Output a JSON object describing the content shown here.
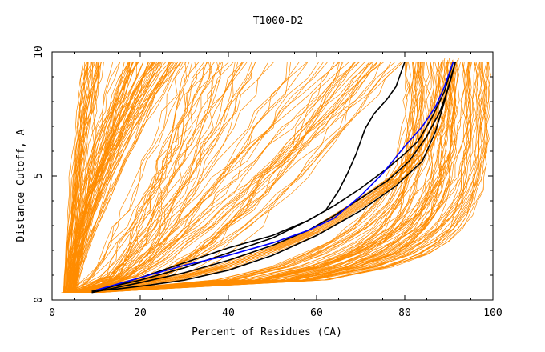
{
  "chart_data": {
    "type": "line",
    "title": "T1000-D2",
    "xlabel": "Percent of Residues (CA)",
    "ylabel": "Distance Cutoff, A",
    "xlim": [
      0,
      100
    ],
    "ylim": [
      0,
      10
    ],
    "x_ticks": [
      0,
      20,
      40,
      60,
      80,
      100
    ],
    "y_ticks": [
      0,
      5,
      10
    ],
    "grid": false,
    "legend": "none",
    "colors": {
      "background_models": "#ff8c00",
      "highlight_black": "#000000",
      "highlight_blue": "#0000ff"
    },
    "highlight_series": [
      {
        "color": "#000000",
        "points": [
          [
            9,
            0.35
          ],
          [
            15,
            0.45
          ],
          [
            22,
            0.6
          ],
          [
            30,
            0.8
          ],
          [
            40,
            1.2
          ],
          [
            50,
            1.8
          ],
          [
            60,
            2.6
          ],
          [
            70,
            3.6
          ],
          [
            78,
            4.6
          ],
          [
            84,
            5.6
          ],
          [
            87,
            6.8
          ],
          [
            89,
            8.0
          ],
          [
            90.5,
            9.0
          ],
          [
            91.5,
            9.6
          ]
        ]
      },
      {
        "color": "#000000",
        "points": [
          [
            10,
            0.4
          ],
          [
            20,
            0.8
          ],
          [
            30,
            1.3
          ],
          [
            40,
            1.9
          ],
          [
            50,
            2.5
          ],
          [
            58,
            3.2
          ],
          [
            62,
            3.6
          ],
          [
            65,
            4.4
          ],
          [
            67,
            5.1
          ],
          [
            69,
            5.9
          ],
          [
            71,
            6.9
          ],
          [
            73,
            7.5
          ],
          [
            76,
            8.1
          ],
          [
            78,
            8.6
          ],
          [
            80,
            9.6
          ]
        ]
      },
      {
        "color": "#000000",
        "points": [
          [
            9,
            0.3
          ],
          [
            20,
            0.7
          ],
          [
            30,
            1.1
          ],
          [
            40,
            1.6
          ],
          [
            50,
            2.2
          ],
          [
            58,
            2.8
          ],
          [
            64,
            3.4
          ],
          [
            70,
            4.1
          ],
          [
            76,
            4.8
          ],
          [
            81,
            5.6
          ],
          [
            85,
            6.6
          ],
          [
            88,
            7.6
          ],
          [
            90,
            8.6
          ],
          [
            91.5,
            9.6
          ]
        ]
      },
      {
        "color": "#000000",
        "points": [
          [
            11,
            0.4
          ],
          [
            20,
            0.9
          ],
          [
            30,
            1.5
          ],
          [
            40,
            2.1
          ],
          [
            50,
            2.6
          ],
          [
            58,
            3.2
          ],
          [
            64,
            3.8
          ],
          [
            70,
            4.5
          ],
          [
            76,
            5.3
          ],
          [
            80,
            5.9
          ],
          [
            83,
            6.4
          ],
          [
            86,
            7.3
          ],
          [
            89,
            8.4
          ],
          [
            91,
            9.6
          ]
        ]
      },
      {
        "color": "#0000ff",
        "points": [
          [
            10,
            0.4
          ],
          [
            20,
            0.9
          ],
          [
            30,
            1.4
          ],
          [
            40,
            1.8
          ],
          [
            50,
            2.3
          ],
          [
            58,
            2.8
          ],
          [
            64,
            3.3
          ],
          [
            70,
            4.2
          ],
          [
            75,
            5.1
          ],
          [
            80,
            6.2
          ],
          [
            84,
            7.0
          ],
          [
            87,
            7.8
          ],
          [
            89,
            8.6
          ],
          [
            91,
            9.6
          ]
        ]
      }
    ],
    "background_models_note_count": 0
  }
}
